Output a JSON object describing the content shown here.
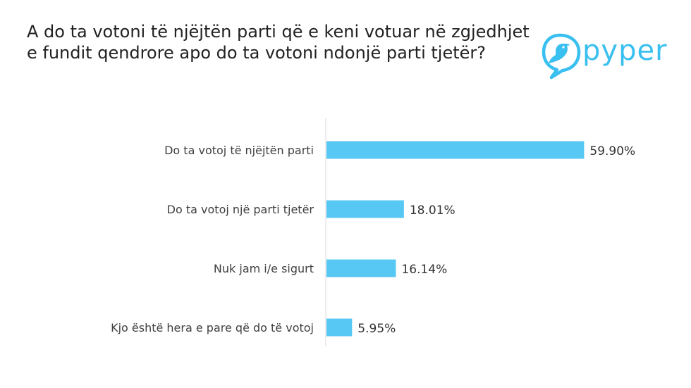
{
  "title": "A do ta votoni të njëjtën parti që e keni votuar në zgjedhjet e fundit qendrore apo do ta votoni ndonjë parti tjetër?",
  "logo": {
    "text": "pyper",
    "icon": "bird-logo-icon",
    "color": "#39bff0"
  },
  "chart_data": {
    "type": "bar",
    "orientation": "horizontal",
    "categories": [
      "Do ta votoj të njëjtën parti",
      "Do ta votoj një parti tjetër",
      "Nuk jam i/e sigurt",
      "Kjo është hera e pare që do të votoj"
    ],
    "values": [
      59.9,
      18.01,
      16.14,
      5.95
    ],
    "data_labels": [
      "59.90%",
      "18.01%",
      "16.14%",
      "5.95%"
    ],
    "unit": "%",
    "xlim": [
      0,
      60
    ],
    "grid": false,
    "legend": "none",
    "bar_color": "#57c7f4"
  }
}
